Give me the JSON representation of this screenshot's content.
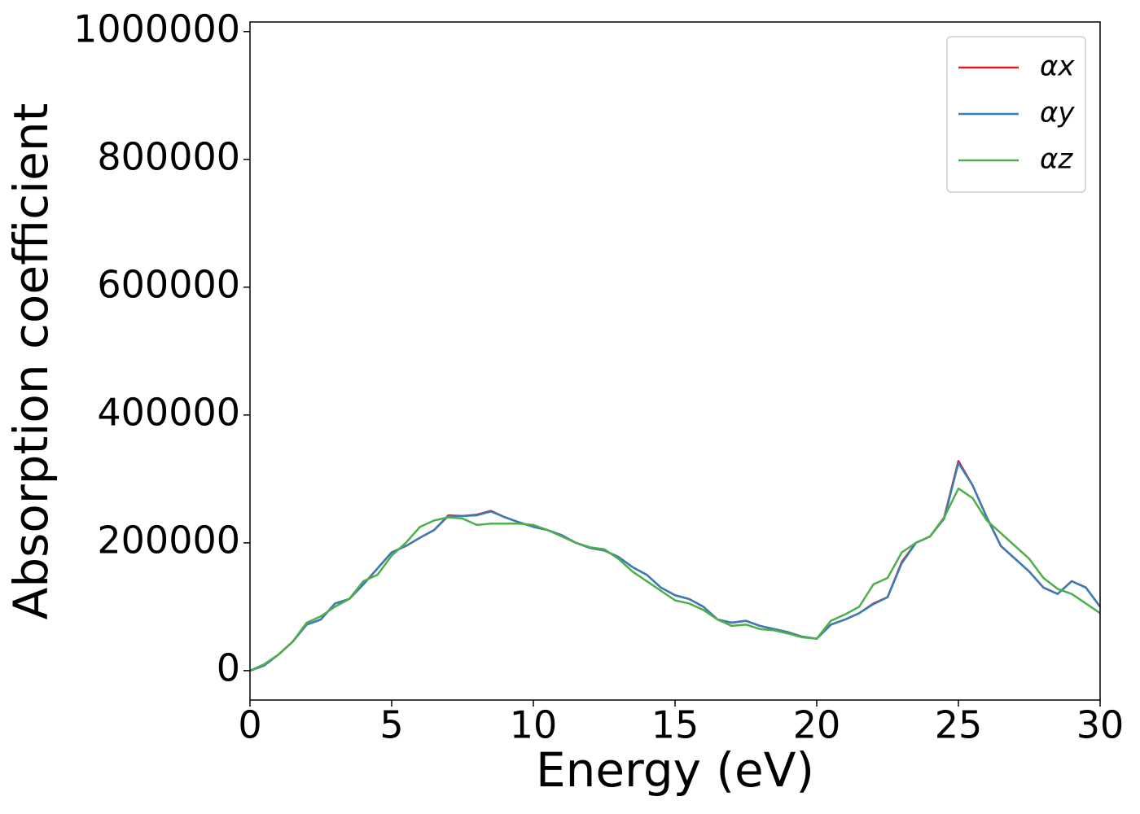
{
  "chart_data": {
    "type": "line",
    "xlabel": "Energy (eV)",
    "ylabel": "Absorption coefficient",
    "x": [
      0,
      0.5,
      1,
      1.5,
      2,
      2.5,
      3,
      3.5,
      4,
      4.5,
      5,
      5.5,
      6,
      6.5,
      7,
      7.5,
      8,
      8.5,
      9,
      9.5,
      10,
      10.5,
      11,
      11.5,
      12,
      12.5,
      13,
      13.5,
      14,
      14.5,
      15,
      15.5,
      16,
      16.5,
      17,
      17.5,
      18,
      18.5,
      19,
      19.5,
      20,
      20.5,
      21,
      21.5,
      22,
      22.5,
      23,
      23.5,
      24,
      24.5,
      25,
      25.5,
      26,
      26.5,
      27,
      27.5,
      28,
      28.5,
      29,
      29.5,
      30
    ],
    "series": [
      {
        "name": "αx",
        "color": "#e41a1c",
        "values": [
          0,
          8000,
          25000,
          45000,
          72000,
          80000,
          105000,
          112000,
          135000,
          160000,
          185000,
          195000,
          208000,
          220000,
          243000,
          242000,
          244000,
          250000,
          240000,
          232000,
          225000,
          220000,
          212000,
          200000,
          192000,
          188000,
          178000,
          162000,
          150000,
          130000,
          118000,
          112000,
          100000,
          80000,
          75000,
          78000,
          70000,
          65000,
          60000,
          53000,
          50000,
          72000,
          80000,
          90000,
          105000,
          115000,
          170000,
          200000,
          210000,
          240000,
          328000,
          290000,
          240000,
          195000,
          175000,
          155000,
          130000,
          120000,
          140000,
          130000,
          100000
        ]
      },
      {
        "name": "αy",
        "color": "#377eb8",
        "values": [
          0,
          8000,
          25000,
          45000,
          72000,
          80000,
          105000,
          112000,
          135000,
          160000,
          185000,
          195000,
          208000,
          220000,
          242000,
          242000,
          243000,
          249000,
          240000,
          232000,
          225000,
          220000,
          212000,
          200000,
          192000,
          188000,
          178000,
          162000,
          150000,
          130000,
          118000,
          112000,
          100000,
          80000,
          75000,
          78000,
          70000,
          65000,
          60000,
          53000,
          50000,
          72000,
          80000,
          90000,
          104000,
          115000,
          168000,
          200000,
          210000,
          238000,
          325000,
          290000,
          240000,
          195000,
          175000,
          155000,
          130000,
          120000,
          140000,
          130000,
          100000
        ]
      },
      {
        "name": "αz",
        "color": "#4daf4a",
        "values": [
          0,
          10000,
          25000,
          45000,
          75000,
          85000,
          100000,
          112000,
          140000,
          150000,
          180000,
          200000,
          225000,
          235000,
          240000,
          238000,
          228000,
          230000,
          230000,
          230000,
          228000,
          220000,
          210000,
          200000,
          193000,
          190000,
          175000,
          155000,
          140000,
          125000,
          110000,
          105000,
          95000,
          80000,
          70000,
          72000,
          65000,
          63000,
          58000,
          52000,
          50000,
          78000,
          88000,
          100000,
          135000,
          145000,
          185000,
          200000,
          210000,
          240000,
          285000,
          270000,
          235000,
          215000,
          195000,
          175000,
          145000,
          128000,
          120000,
          105000,
          90000
        ]
      }
    ],
    "xlim": [
      0,
      30
    ],
    "xticks": [
      0,
      5,
      10,
      15,
      20,
      25,
      30
    ],
    "ylim": [
      -46000,
      1015000
    ],
    "yticks": [
      0,
      200000,
      400000,
      600000,
      800000,
      1000000
    ],
    "legend": "upper right",
    "grid": false
  }
}
